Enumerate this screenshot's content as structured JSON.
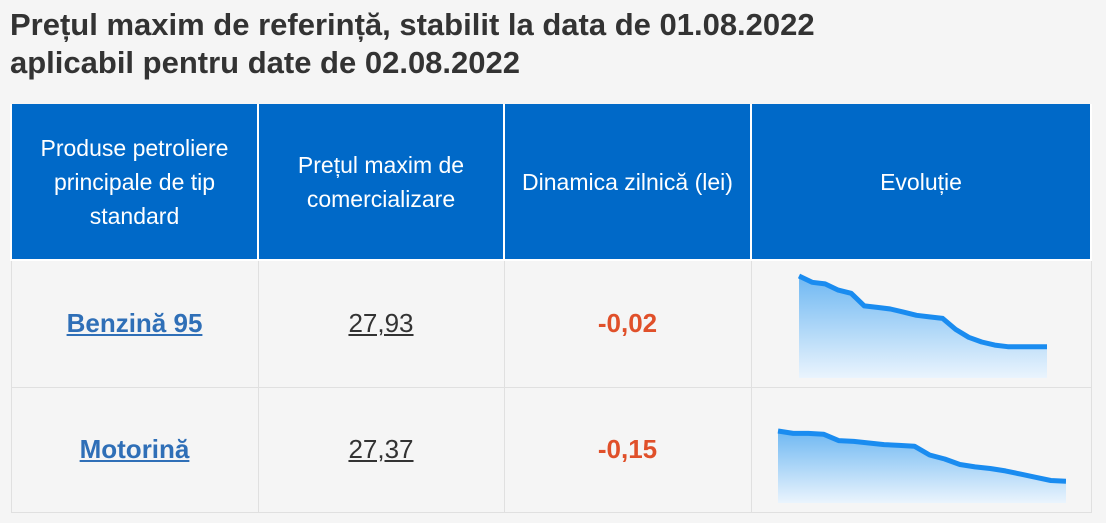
{
  "header": {
    "title_line1": "Prețul maxim de referință, stabilit la data de 01.08.2022",
    "title_line2": "aplicabil pentru date de 02.08.2022"
  },
  "table": {
    "columns": [
      "Produse petroliere principale de tip standard",
      "Prețul maxim de comercializare",
      "Dinamica zilnică (lei)",
      "Evoluție"
    ],
    "rows": [
      {
        "product": "Benzină 95",
        "price": "27,93",
        "change": "-0,02",
        "trend": [
          100,
          96,
          95,
          91,
          89,
          81,
          80,
          79,
          77,
          75,
          74,
          73,
          66,
          61,
          58,
          56,
          55,
          55,
          55,
          55
        ]
      },
      {
        "product": "Motorină",
        "price": "27,37",
        "change": "-0,15",
        "trend": [
          100,
          97,
          97,
          96,
          88,
          87,
          85,
          83,
          82,
          81,
          70,
          65,
          58,
          55,
          53,
          50,
          46,
          42,
          38,
          37
        ]
      }
    ]
  }
}
